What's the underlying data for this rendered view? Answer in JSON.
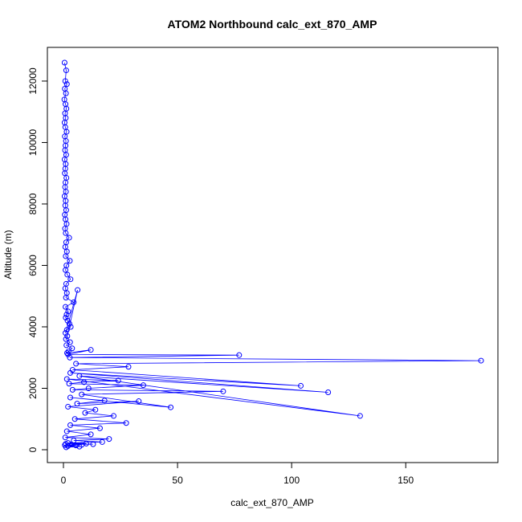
{
  "chart_data": {
    "type": "line",
    "title": "ATOM2 Northbound calc_ext_870_AMP",
    "xlabel": "calc_ext_870_AMP",
    "ylabel": "Altitude (m)",
    "xlim": [
      0,
      190
    ],
    "ylim": [
      0,
      12600
    ],
    "xticks": [
      0,
      50,
      100,
      150
    ],
    "yticks": [
      0,
      2000,
      4000,
      6000,
      8000,
      10000,
      12000
    ],
    "grid": false,
    "legend": "none",
    "series": [
      {
        "color": "#0000ff",
        "marker": "open-circle",
        "x": [
          0.5,
          1.2,
          0.8,
          1.5,
          0.6,
          1.1,
          0.4,
          0.9,
          1.3,
          0.7,
          1.0,
          0.5,
          0.8,
          1.4,
          0.6,
          1.1,
          0.9,
          0.7,
          1.2,
          0.5,
          1.0,
          0.8,
          0.6,
          1.3,
          0.9,
          0.7,
          1.1,
          0.5,
          1.0,
          0.8,
          1.2,
          0.6,
          0.9,
          1.4,
          0.7,
          1.0,
          2.5,
          1.2,
          0.8,
          1.5,
          1.0,
          2.8,
          1.3,
          0.9,
          1.7,
          3.1,
          1.2,
          0.8,
          1.5,
          1.1,
          4.5,
          0.9,
          2.1,
          1.4,
          1.0,
          1.8,
          2.6,
          3.2,
          1.5,
          0.9,
          6.2,
          1.7,
          1.1,
          2.9,
          1.3,
          3.8,
          2.2,
          1.6,
          12.0,
          2.0,
          77.0,
          2.8,
          183.0,
          5.5,
          28.5,
          4.0,
          104.0,
          3.0,
          116.0,
          7.0,
          130.0,
          1.5,
          24.0,
          9.0,
          2.5,
          35.0,
          11.0,
          4.0,
          70.0,
          8.0,
          47.0,
          3.0,
          18.0,
          6.0,
          33.0,
          2.0,
          14.0,
          9.5,
          22.0,
          5.0,
          27.5,
          3.0,
          16.0,
          1.5,
          12.0,
          0.8,
          20.0,
          4.5,
          17.0,
          2.0,
          10.0,
          1.0,
          13.0,
          3.5,
          8.0,
          0.6,
          5.5,
          2.0,
          7.0,
          1.2
        ],
        "y": [
          12600,
          12350,
          12000,
          11900,
          11750,
          11600,
          11400,
          11250,
          11100,
          10950,
          10800,
          10650,
          10500,
          10350,
          10200,
          10050,
          9900,
          9750,
          9600,
          9450,
          9300,
          9150,
          9000,
          8850,
          8700,
          8550,
          8400,
          8250,
          8100,
          7950,
          7800,
          7650,
          7500,
          7350,
          7200,
          7050,
          6900,
          6750,
          6600,
          6450,
          6300,
          6150,
          6000,
          5850,
          5700,
          5550,
          5400,
          5250,
          5100,
          4950,
          4800,
          4650,
          4500,
          4400,
          4300,
          4200,
          4100,
          4000,
          3900,
          3800,
          5200,
          3700,
          3600,
          3500,
          3400,
          3300,
          3200,
          3150,
          3250,
          3100,
          3080,
          3000,
          2900,
          2800,
          2700,
          2600,
          2080,
          2500,
          1870,
          2400,
          1100,
          2300,
          2250,
          2200,
          2150,
          2100,
          2000,
          1950,
          1900,
          1800,
          1380,
          1700,
          1600,
          1500,
          1580,
          1400,
          1300,
          1200,
          1100,
          1000,
          870,
          800,
          700,
          600,
          500,
          400,
          350,
          300,
          250,
          220,
          200,
          190,
          180,
          170,
          160,
          150,
          140,
          120,
          100,
          80
        ]
      }
    ]
  }
}
